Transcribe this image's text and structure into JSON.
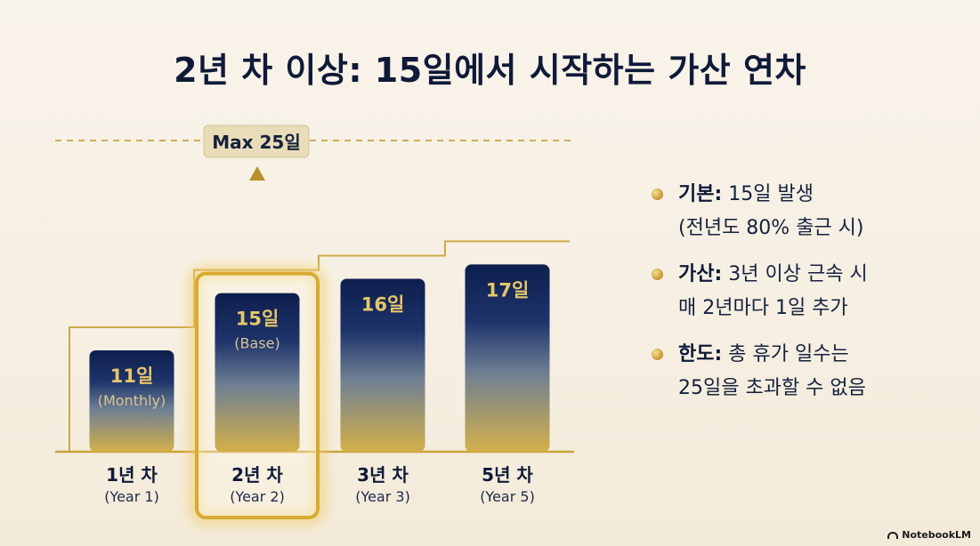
{
  "title": "2년 차 이상: 15일에서 시작하는 가산 연차",
  "max_label": "Max 25일",
  "chart_data": {
    "type": "bar",
    "title": "2년 차 이상: 15일에서 시작하는 가산 연차",
    "categories": [
      "1년 차",
      "2년 차",
      "3년 차",
      "5년 차"
    ],
    "category_sublabels": [
      "(Year 1)",
      "(Year 2)",
      "(Year 3)",
      "(Year 5)"
    ],
    "values": [
      11,
      15,
      16,
      17
    ],
    "value_labels": [
      "11일",
      "15일",
      "16일",
      "17일"
    ],
    "value_sublabels": [
      "(Monthly)",
      "(Base)",
      "",
      ""
    ],
    "highlight_index": 1,
    "max_value": 25,
    "colors": {
      "bar_top": "#0e1f4d",
      "bar_mid": "#3f5a86",
      "bar_bottom": "#d4b04a",
      "accent_gold": "#c9a23a",
      "label_gold": "#e7c66a"
    }
  },
  "bullets": [
    {
      "key": "기본:",
      "lines": [
        "15일 발생",
        "(전년도 80% 출근 시)"
      ]
    },
    {
      "key": "가산:",
      "lines": [
        "3년 이상 근속 시",
        "매 2년마다 1일 추가"
      ]
    },
    {
      "key": "한도:",
      "lines": [
        "총 휴가 일수는",
        "25일을 초과할 수 없음"
      ]
    }
  ],
  "brand": "NotebookLM"
}
